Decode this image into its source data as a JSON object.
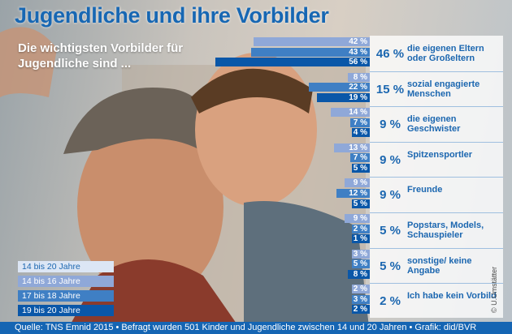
{
  "header": {
    "title": "Jugendliche und ihre Vorbilder",
    "subtitle": "Die wichtigsten Vorbilder für Jugendliche sind ..."
  },
  "chart_data": {
    "type": "bar",
    "orientation": "horizontal",
    "series": [
      {
        "name": "14 bis 16 Jahre",
        "color": "#8fa8d8"
      },
      {
        "name": "17 bis 18 Jahre",
        "color": "#3f7fc4"
      },
      {
        "name": "19 bis 20 Jahre",
        "color": "#0a57a8"
      }
    ],
    "categories": [
      {
        "label": "die eigenen Eltern oder Großeltern",
        "total": "46 %",
        "values": [
          42,
          43,
          56
        ]
      },
      {
        "label": "sozial engagierte Menschen",
        "total": "15 %",
        "values": [
          8,
          22,
          19
        ]
      },
      {
        "label": "die eigenen Geschwister",
        "total": "9 %",
        "values": [
          14,
          7,
          4
        ]
      },
      {
        "label": "Spitzensportler",
        "total": "9 %",
        "values": [
          13,
          7,
          5
        ]
      },
      {
        "label": "Freunde",
        "total": "9 %",
        "values": [
          9,
          12,
          5
        ]
      },
      {
        "label": "Popstars, Models, Schauspieler",
        "total": "5 %",
        "values": [
          9,
          2,
          1
        ]
      },
      {
        "label": "sonstige/ keine Angabe",
        "total": "5 %",
        "values": [
          3,
          5,
          8
        ]
      },
      {
        "label": "Ich habe kein Vorbild",
        "total": "2 %",
        "values": [
          2,
          3,
          2
        ]
      }
    ],
    "value_suffix": " %",
    "legend": {
      "title_item": "14 bis 20 Jahre",
      "items": [
        "14 bis 16 Jahre",
        "17 bis 18 Jahre",
        "19 bis 20 Jahre"
      ],
      "colors": [
        "#dce6f5",
        "#8fa8d8",
        "#3f7fc4",
        "#0a57a8"
      ],
      "position": "bottom-left"
    }
  },
  "footer": {
    "source": "Quelle: TNS Emnid 2015 • Befragt wurden 501 Kinder und Jugendliche zwischen 14 und 20 Jahren • Grafik: did/BVR"
  },
  "credit": "© U.Umstätter"
}
